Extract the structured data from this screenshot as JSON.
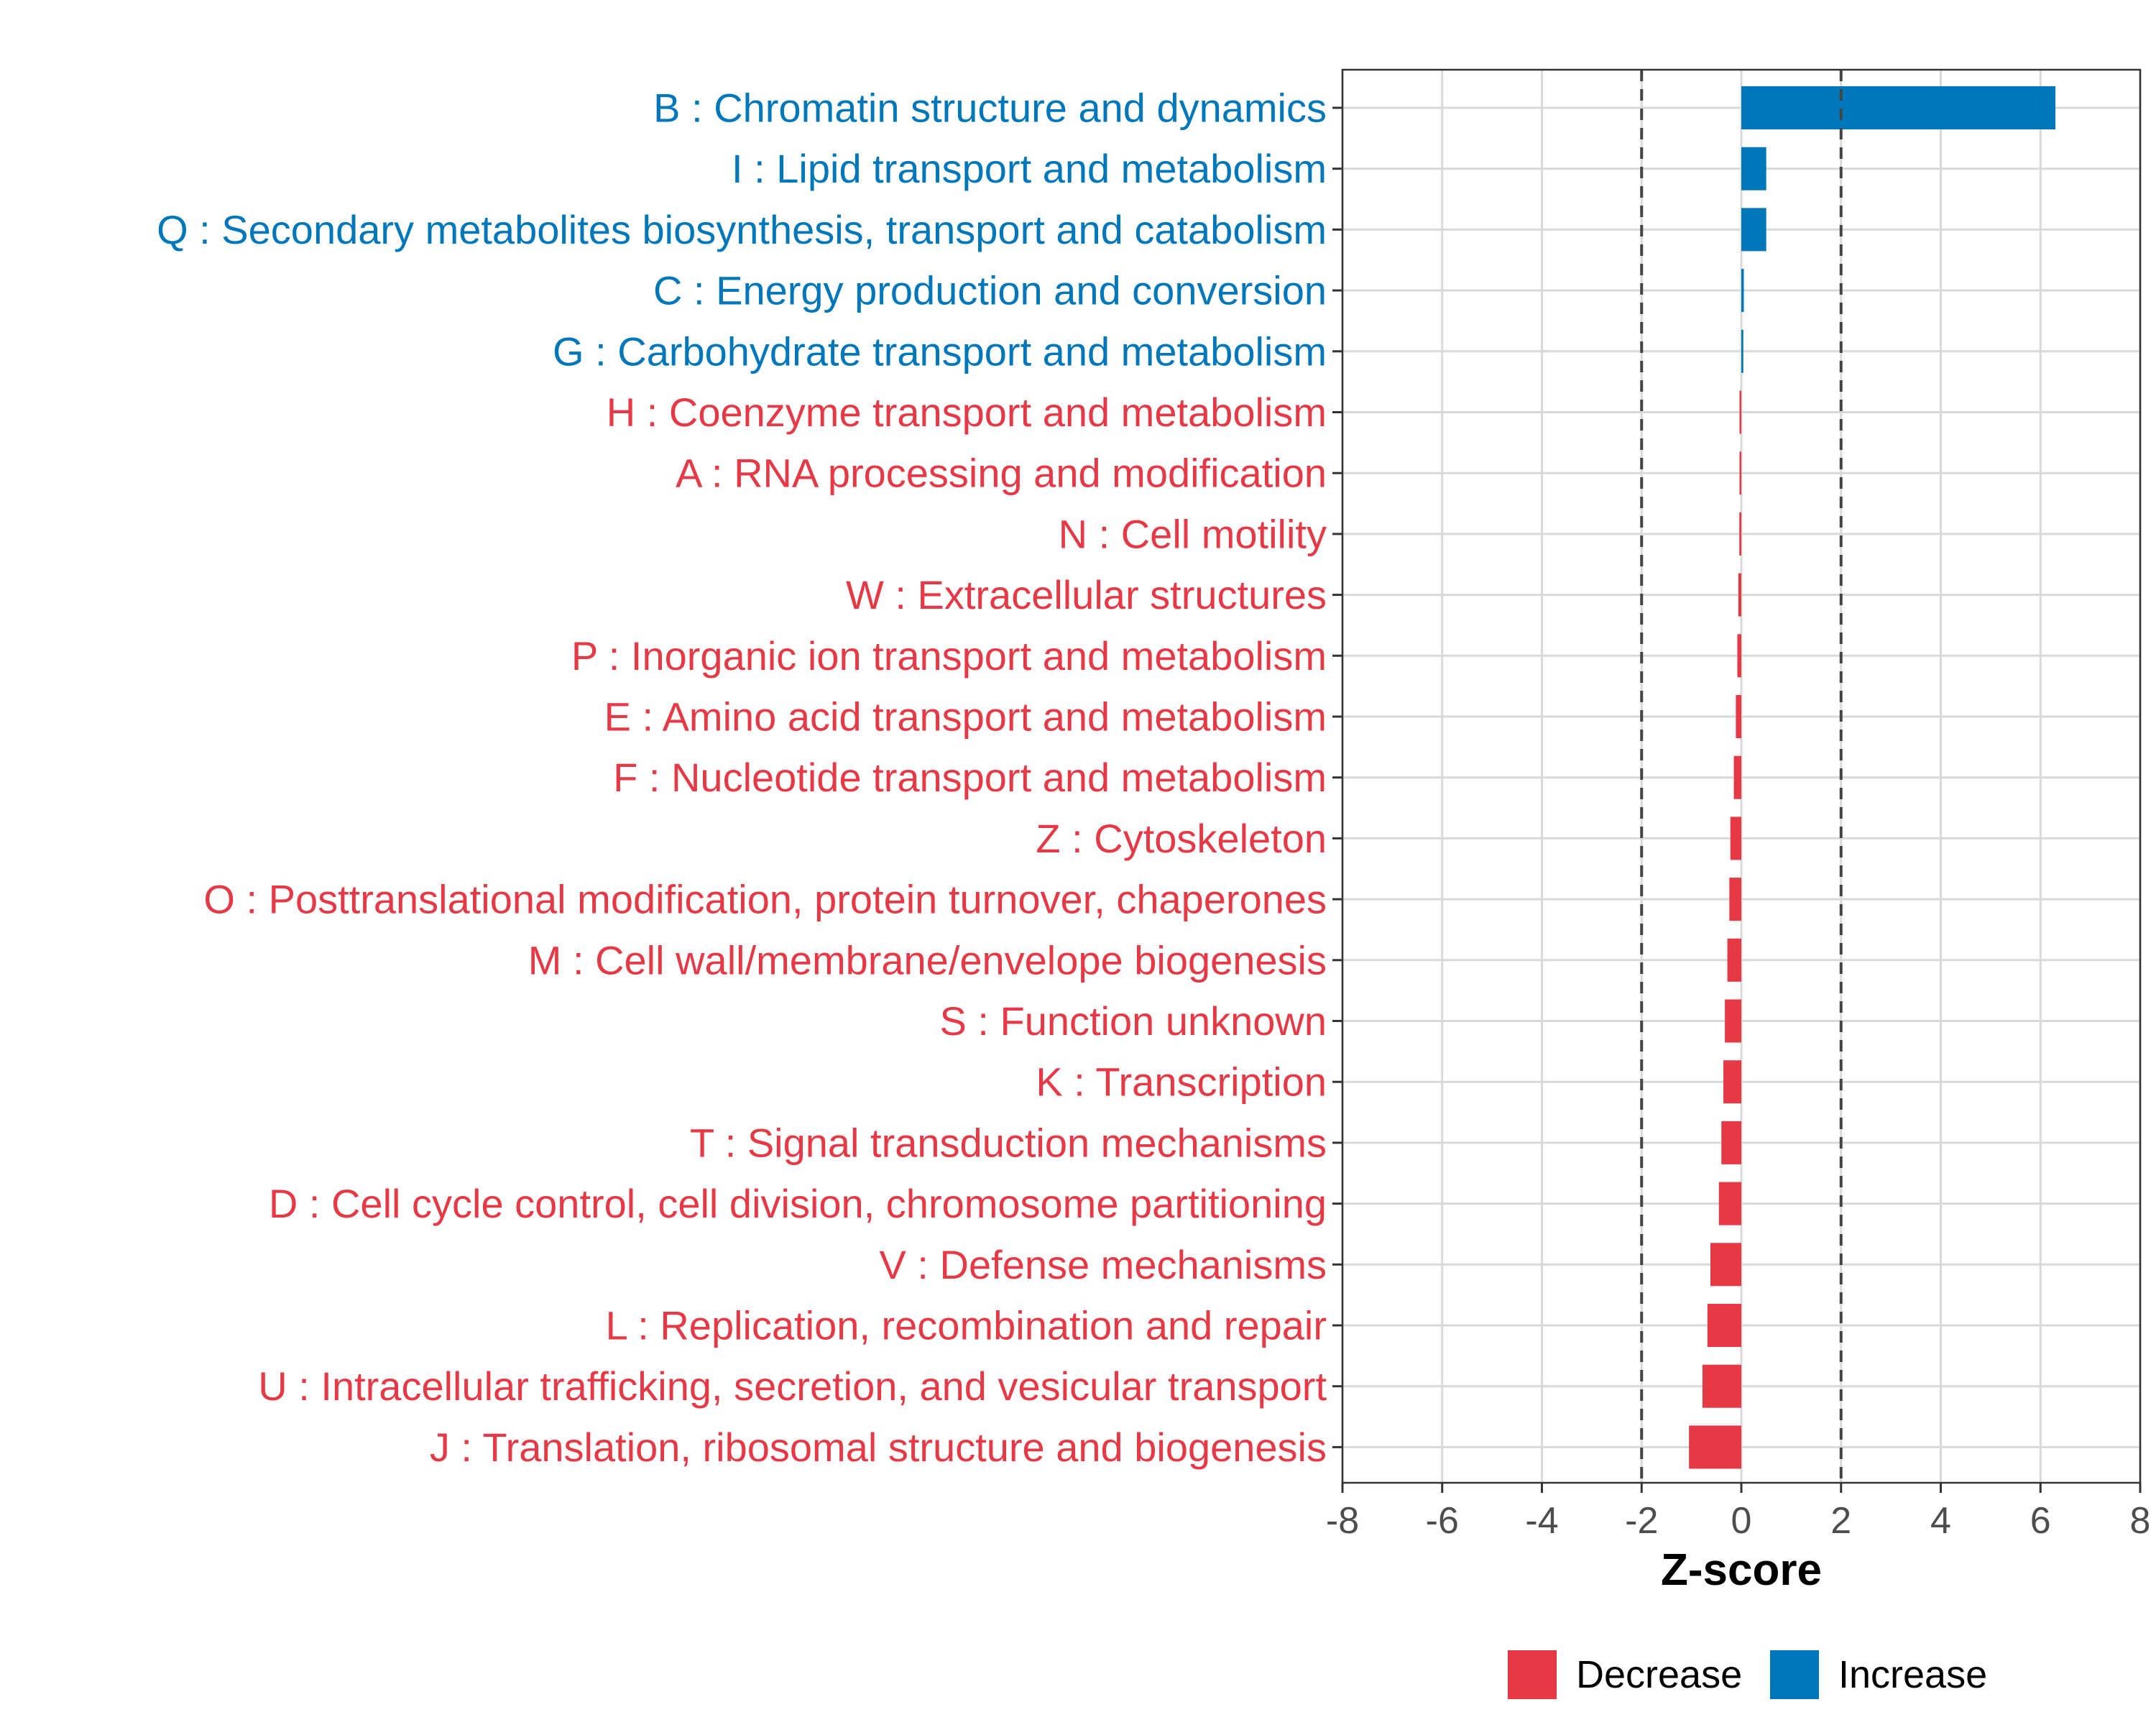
{
  "chart_data": {
    "type": "bar",
    "orientation": "horizontal",
    "title": "",
    "xlabel": "Z-score",
    "ylabel": "",
    "xlim": [
      -8,
      8
    ],
    "x_ticks": [
      -8,
      -6,
      -4,
      -2,
      0,
      2,
      4,
      6,
      8
    ],
    "x_tick_labels": [
      "-8",
      "-6",
      "-4",
      "-2",
      "0",
      "2",
      "4",
      "6",
      "8"
    ],
    "threshold_lines": [
      -2,
      2
    ],
    "grid": true,
    "categories": [
      "B : Chromatin structure and dynamics",
      "I : Lipid transport and metabolism",
      "Q : Secondary metabolites biosynthesis, transport and catabolism",
      "C : Energy production and conversion",
      "G : Carbohydrate transport and metabolism",
      "H : Coenzyme transport and metabolism",
      "A : RNA processing and modification",
      "N : Cell motility",
      "W : Extracellular structures",
      "P : Inorganic ion transport and metabolism",
      "E : Amino acid transport and metabolism",
      "F : Nucleotide transport and metabolism",
      "Z : Cytoskeleton",
      "O : Posttranslational modification, protein turnover, chaperones",
      "M : Cell wall/membrane/envelope biogenesis",
      "S : Function unknown",
      "K : Transcription",
      "T : Signal transduction mechanisms",
      "D : Cell cycle control, cell division, chromosome partitioning",
      "V : Defense mechanisms",
      "L : Replication, recombination and repair",
      "U : Intracellular trafficking, secretion, and vesicular transport",
      "J : Translation, ribosomal structure and biogenesis"
    ],
    "values": [
      6.3,
      0.5,
      0.5,
      0.05,
      0.04,
      -0.01,
      -0.02,
      -0.04,
      -0.06,
      -0.08,
      -0.11,
      -0.15,
      -0.22,
      -0.24,
      -0.28,
      -0.33,
      -0.36,
      -0.4,
      -0.45,
      -0.62,
      -0.68,
      -0.78,
      -1.05
    ],
    "groups": [
      "Increase",
      "Increase",
      "Increase",
      "Increase",
      "Increase",
      "Decrease",
      "Decrease",
      "Decrease",
      "Decrease",
      "Decrease",
      "Decrease",
      "Decrease",
      "Decrease",
      "Decrease",
      "Decrease",
      "Decrease",
      "Decrease",
      "Decrease",
      "Decrease",
      "Decrease",
      "Decrease",
      "Decrease",
      "Decrease"
    ],
    "legend": {
      "placement": "bottom-right",
      "items": [
        {
          "label": "Decrease",
          "color": "#E63946"
        },
        {
          "label": "Increase",
          "color": "#0077BB"
        }
      ]
    },
    "colors": {
      "Decrease": "#E63946",
      "Increase": "#0077BB"
    }
  }
}
